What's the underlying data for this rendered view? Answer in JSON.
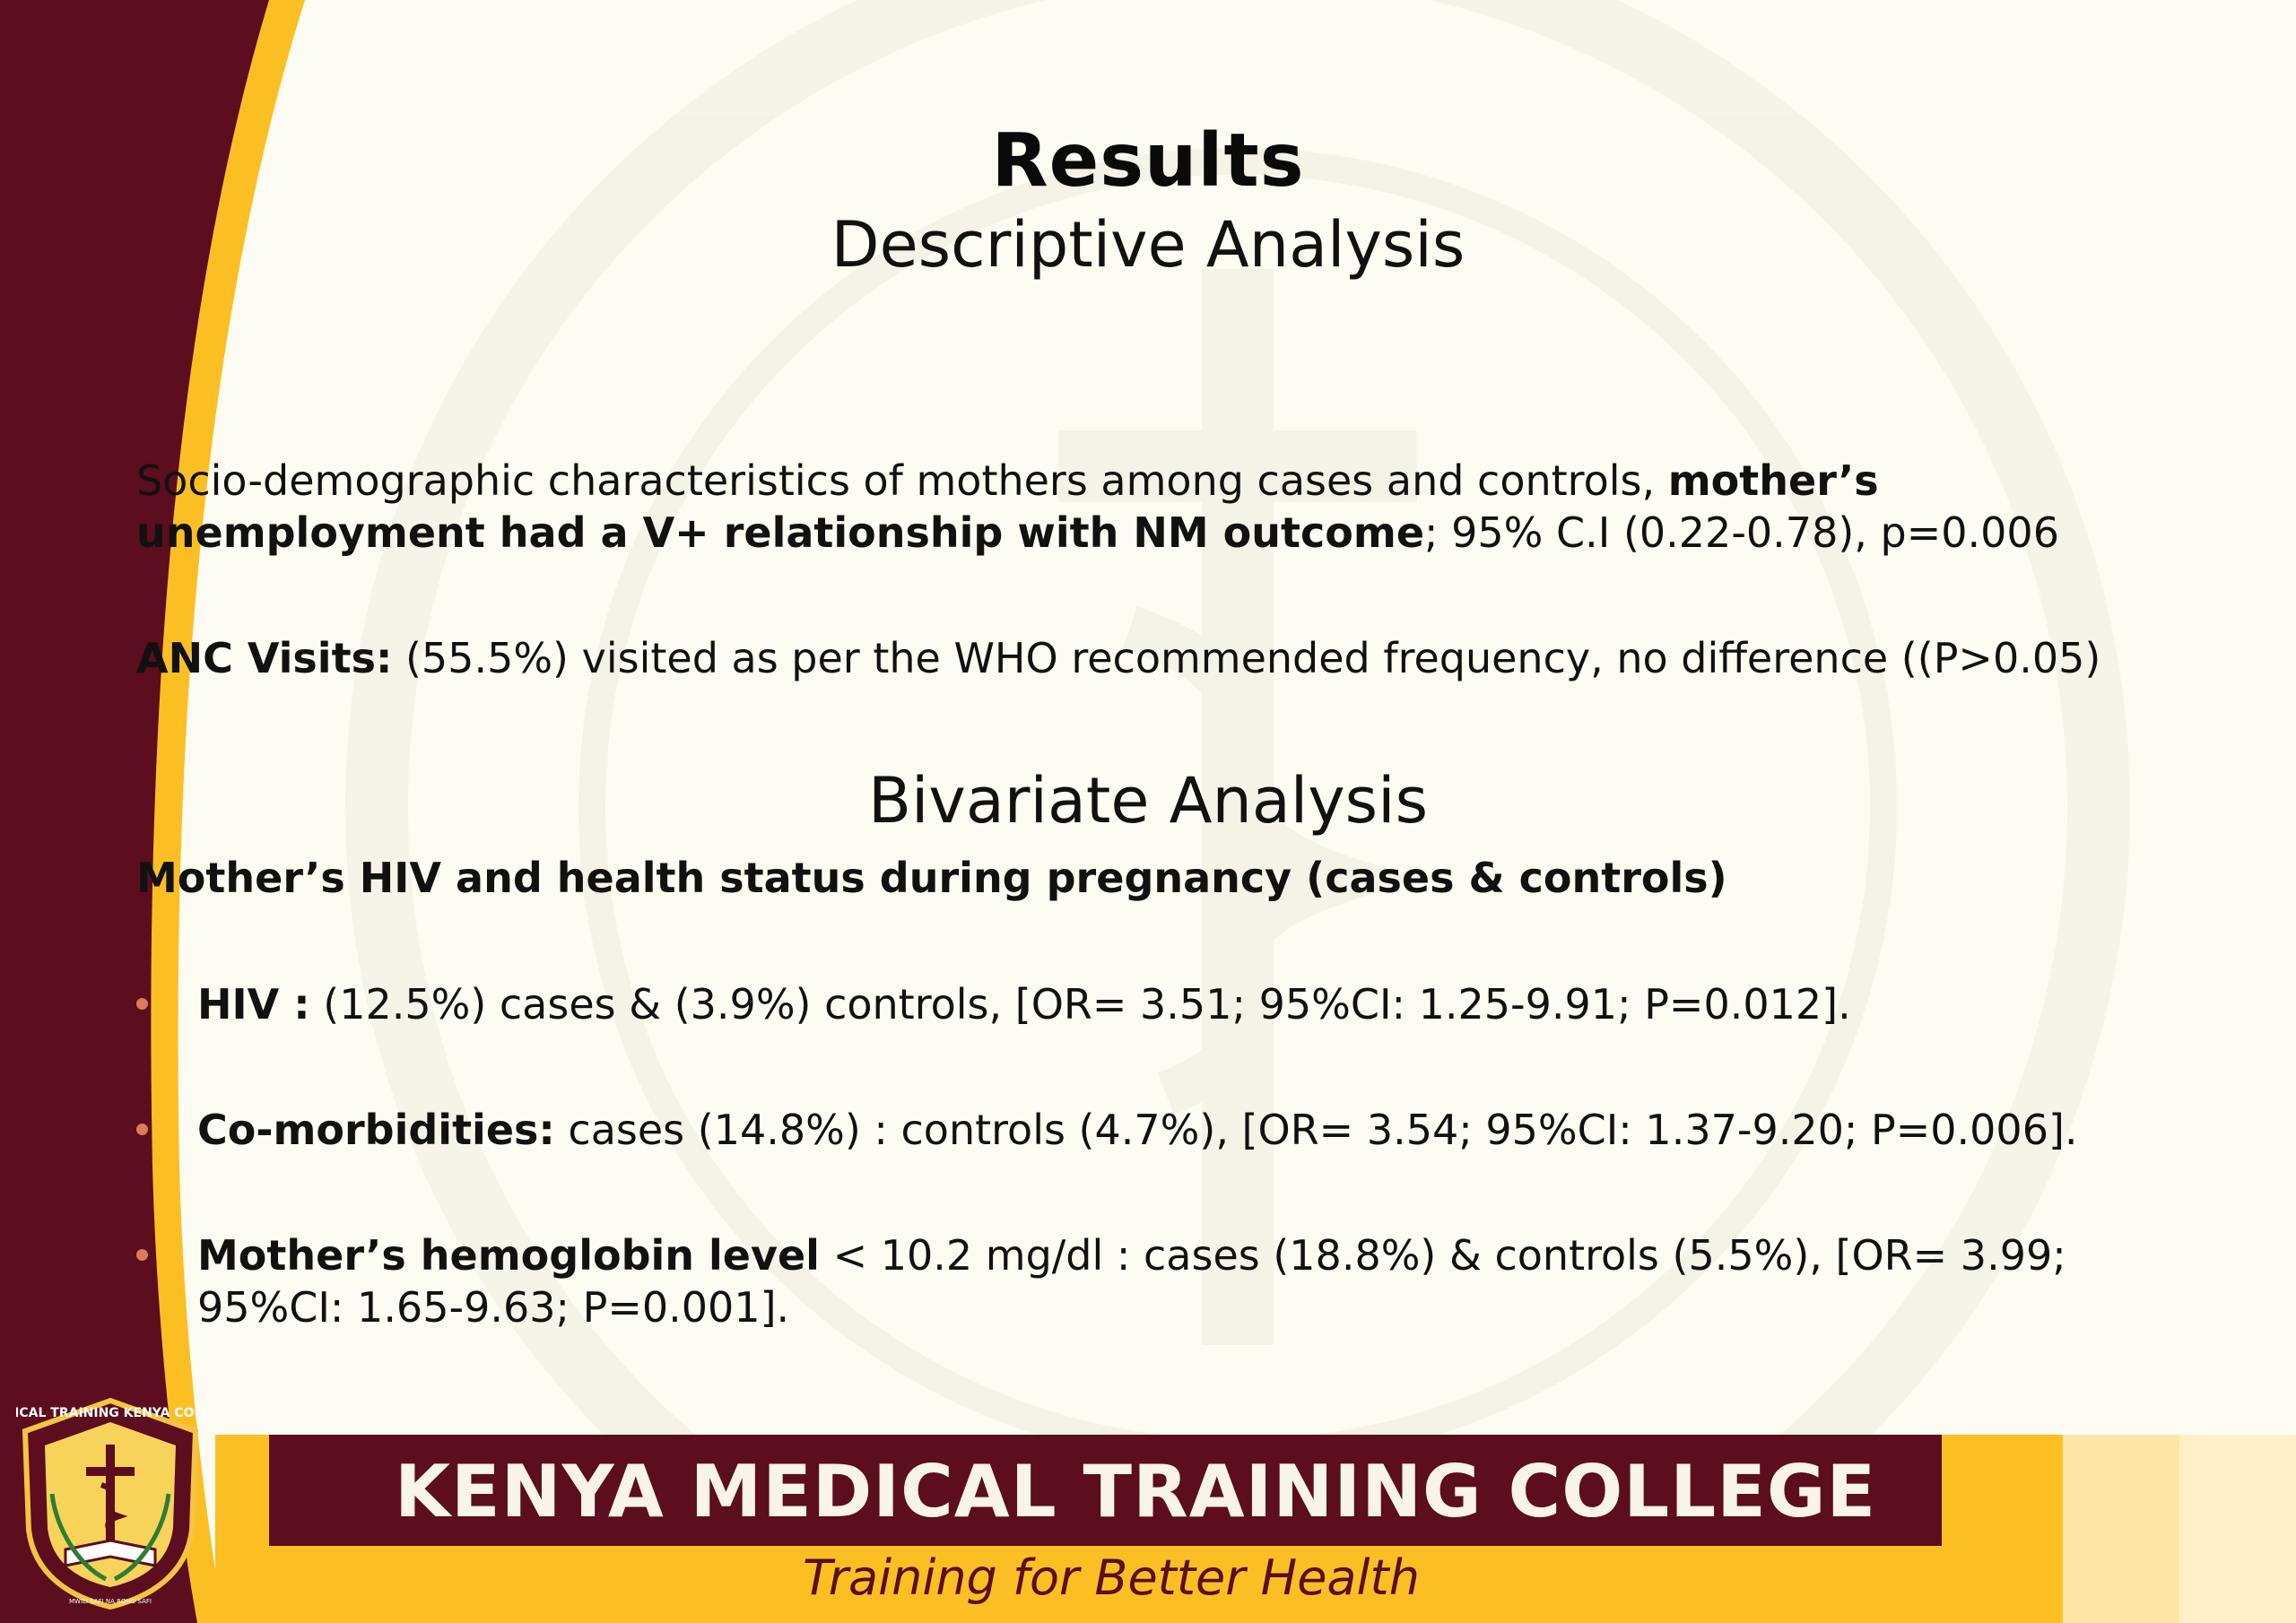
{
  "slide": {
    "title": "Results",
    "subtitle": "Descriptive Analysis",
    "descriptive": {
      "p1_text": "Socio-demographic characteristics of mothers among cases and controls, ",
      "p1_bold": "mother’s unemployment had a V+ relationship with NM outcome",
      "p1_tail": "; 95% C.I (0.22-0.78), p=0.006",
      "anc_label": "ANC Visits:",
      "anc_text": "  (55.5%) visited as per the WHO recommended frequency, no difference ((P>0.05)"
    },
    "bivariate": {
      "title": "Bivariate Analysis",
      "heading": "Mother’s HIV and health status during pregnancy (cases & controls)",
      "bullets": [
        {
          "label": "HIV :",
          "text": " (12.5%) cases  & (3.9%) controls, [OR= 3.51; 95%CI: 1.25-9.91; P=0.012]."
        },
        {
          "label": "Co-morbidities:",
          "text": " cases (14.8%) : controls (4.7%), [OR= 3.54; 95%CI: 1.37-9.20; P=0.006]."
        },
        {
          "label": "Mother’s hemoglobin level",
          "text": " < 10.2 mg/dl : cases (18.8%)  & controls (5.5%), [OR= 3.99; 95%CI: 1.65-9.63; P=0.001]."
        }
      ]
    }
  },
  "footer": {
    "college_name": "KENYA MEDICAL TRAINING COLLEGE",
    "tagline": "Training for Better Health",
    "logo_text": "MEDICAL TRAINING KENYA COLLEGE",
    "logo_motto": "MWILI SAFI NA ROHO SAFI"
  },
  "colors": {
    "maroon": "#5c0d1e",
    "gold": "#fbbf24",
    "cream": "#fdfcf3",
    "bullet": "#d97b5c"
  }
}
